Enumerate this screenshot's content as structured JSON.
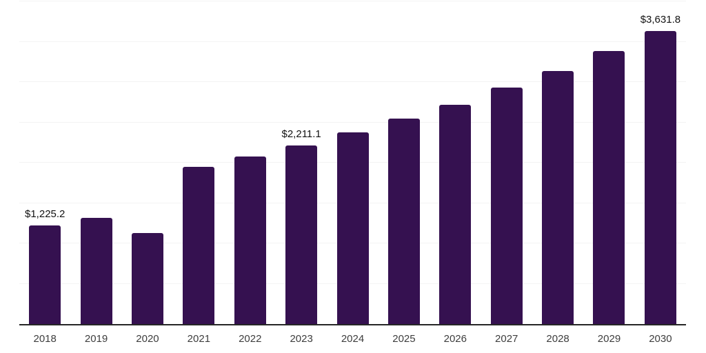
{
  "chart_data": {
    "type": "bar",
    "title": "",
    "xlabel": "",
    "ylabel": "",
    "categories": [
      "2018",
      "2019",
      "2020",
      "2021",
      "2022",
      "2023",
      "2024",
      "2025",
      "2026",
      "2027",
      "2028",
      "2029",
      "2030"
    ],
    "values": [
      1225.2,
      1316,
      1128,
      1950,
      2078,
      2211.1,
      2380,
      2547,
      2718,
      2932,
      3137,
      3385,
      3631.8
    ],
    "data_labels": [
      "$1,225.2",
      "",
      "",
      "",
      "",
      "$2,211.1",
      "",
      "",
      "",
      "",
      "",
      "",
      "$3,631.8"
    ],
    "labeled_points": [
      {
        "category": "2018",
        "label": "$1,225.2"
      },
      {
        "category": "2023",
        "label": "$2,211.1"
      },
      {
        "category": "2030",
        "label": "$3,631.8"
      }
    ],
    "ylim": [
      0,
      4000
    ],
    "gridline_step": 500,
    "grid": "horizontal-only",
    "y_axis_labels_visible": false,
    "legend": "none",
    "colors": {
      "bar": "#351150",
      "gridline": "#F3F3F3",
      "axis_line": "#262626",
      "tick_label": "#3D3D3D",
      "data_label": "#111111",
      "background": "#FFFFFF"
    }
  }
}
